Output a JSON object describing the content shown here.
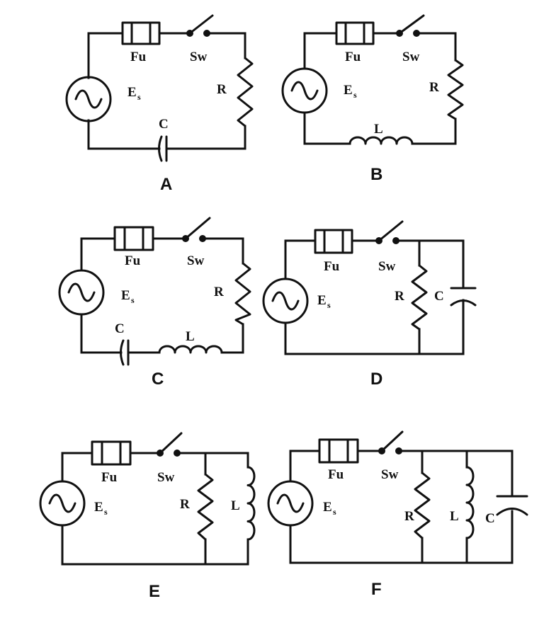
{
  "labels": {
    "fuse": "Fu",
    "switch": "Sw",
    "source_main": "E",
    "source_sub": "s",
    "resistor": "R",
    "inductor": "L",
    "capacitor": "C"
  },
  "circuits": [
    {
      "caption": "A",
      "components": [
        "source",
        "fuse",
        "switch",
        "resistor",
        "capacitor"
      ],
      "topology": "series"
    },
    {
      "caption": "B",
      "components": [
        "source",
        "fuse",
        "switch",
        "resistor",
        "inductor"
      ],
      "topology": "series"
    },
    {
      "caption": "C",
      "components": [
        "source",
        "fuse",
        "switch",
        "resistor",
        "inductor",
        "capacitor"
      ],
      "topology": "series"
    },
    {
      "caption": "D",
      "components": [
        "source",
        "fuse",
        "switch",
        "resistor",
        "capacitor"
      ],
      "topology": "parallel"
    },
    {
      "caption": "E",
      "components": [
        "source",
        "fuse",
        "switch",
        "resistor",
        "inductor"
      ],
      "topology": "parallel"
    },
    {
      "caption": "F",
      "components": [
        "source",
        "fuse",
        "switch",
        "resistor",
        "inductor",
        "capacitor"
      ],
      "topology": "parallel"
    }
  ]
}
